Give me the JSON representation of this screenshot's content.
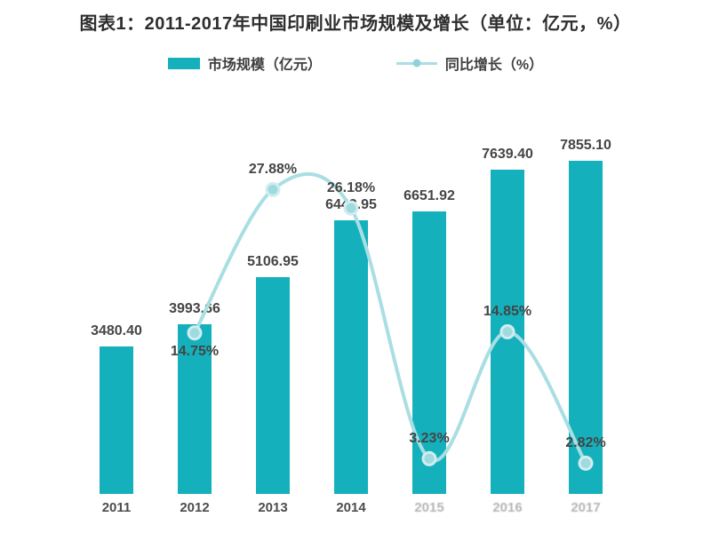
{
  "title": "图表1：2011-2017年中国印刷业市场规模及增长（单位：亿元，%）",
  "legend": {
    "items": [
      {
        "label": "市场规模（亿元）",
        "swatch": "bar-swatch-icon",
        "color": "#14b1bd"
      },
      {
        "label": "同比增长（%）",
        "swatch": "line-swatch-icon",
        "color": "#a9dee3"
      }
    ]
  },
  "colors": {
    "bar": "#14b1bd",
    "line": "#a9dee3",
    "marker_fill": "#9edade",
    "marker_ring": "#d2edf0",
    "label_text": "#454545"
  },
  "chart_data": {
    "type": "bar",
    "title": "图表1：2011-2017年中国印刷业市场规模及增长（单位：亿元，%）",
    "categories": [
      "2011",
      "2012",
      "2013",
      "2014",
      "2015",
      "2016",
      "2017"
    ],
    "series": [
      {
        "name": "市场规模（亿元）",
        "type": "bar",
        "unit": "亿元",
        "values": [
          3480.4,
          3993.66,
          5106.95,
          6443.95,
          6651.92,
          7639.4,
          7855.1
        ],
        "labels": [
          "3480.40",
          "3993.66",
          "5106.95",
          "6443.95",
          "6651.92",
          "7639.40",
          "7855.10"
        ]
      },
      {
        "name": "同比增长（%）",
        "type": "line",
        "unit": "%",
        "values": [
          null,
          14.75,
          27.88,
          26.18,
          3.23,
          14.85,
          2.82
        ],
        "labels": [
          null,
          "14.75%",
          "27.88%",
          "26.18%",
          "3.23%",
          "14.85%",
          "2.82%"
        ],
        "label_side": [
          null,
          "below",
          "above",
          "above",
          "above",
          "above",
          "above"
        ]
      }
    ],
    "bar_axis_range": [
      0,
      8500
    ],
    "pct_axis_range": [
      0,
      45
    ],
    "grid": false,
    "legend_position": "top",
    "x_labels_faded": [
      "2015",
      "2016",
      "2017"
    ]
  }
}
